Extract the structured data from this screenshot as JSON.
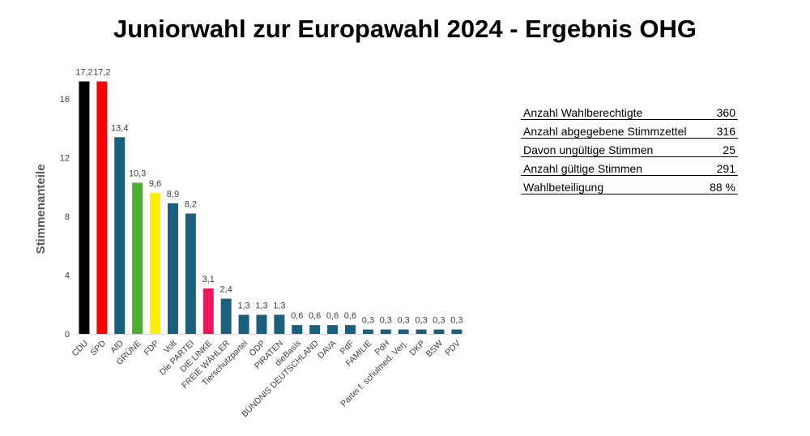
{
  "title": "Juniorwahl zur Europawahl 2024 - Ergebnis OHG",
  "chart_data": {
    "type": "bar",
    "ylabel": "Stimmenanteile",
    "ylim": [
      0,
      18
    ],
    "yticks": [
      0,
      4,
      8,
      12,
      16
    ],
    "grid": false,
    "categories": [
      "CDU",
      "SPD",
      "AfD",
      "GRÜNE",
      "FDP",
      "Volt",
      "Die PARTEI",
      "DIE LINKE",
      "FREIE WÄHLER",
      "Tierschutzpartei",
      "ÖDP",
      "PIRATEN",
      "dieBasis",
      "BÜNDNIS DEUTSCHLAND",
      "DAVA",
      "PdF",
      "FAMILIE",
      "PdH",
      "Partei f. schulmed. Verj.",
      "DKP",
      "BSW",
      "PDV"
    ],
    "values": [
      17.2,
      17.2,
      13.4,
      10.3,
      9.6,
      8.9,
      8.2,
      3.1,
      2.4,
      1.3,
      1.3,
      1.3,
      0.6,
      0.6,
      0.6,
      0.6,
      0.3,
      0.3,
      0.3,
      0.3,
      0.3,
      0.3
    ],
    "value_labels": [
      "17,2",
      "17,2",
      "13,4",
      "10,3",
      "9,6",
      "8,9",
      "8,2",
      "3,1",
      "2,4",
      "1,3",
      "1,3",
      "1,3",
      "0,6",
      "0,6",
      "0,6",
      "0,6",
      "0,3",
      "0,3",
      "0,3",
      "0,3",
      "0,3",
      "0,3"
    ],
    "colors": [
      "#000000",
      "#ff0000",
      "#1b5f7e",
      "#4caf32",
      "#ffed00",
      "#1b5f7e",
      "#1b5f7e",
      "#f0145a",
      "#1b5f7e",
      "#1b5f7e",
      "#1b5f7e",
      "#1b5f7e",
      "#1b5f7e",
      "#1b5f7e",
      "#1b5f7e",
      "#1b5f7e",
      "#1b5f7e",
      "#1b5f7e",
      "#1b5f7e",
      "#1b5f7e",
      "#1b5f7e",
      "#1b5f7e"
    ]
  },
  "stats": [
    {
      "label": "Anzahl Wahlberechtigte",
      "value": "360"
    },
    {
      "label": "Anzahl abgegebene Stimmzettel",
      "value": "316"
    },
    {
      "label": "Davon ungültige Stimmen",
      "value": "25"
    },
    {
      "label": "Anzahl gültige Stimmen",
      "value": "291"
    },
    {
      "label": "Wahlbeteiligung",
      "value": "88 %"
    }
  ]
}
